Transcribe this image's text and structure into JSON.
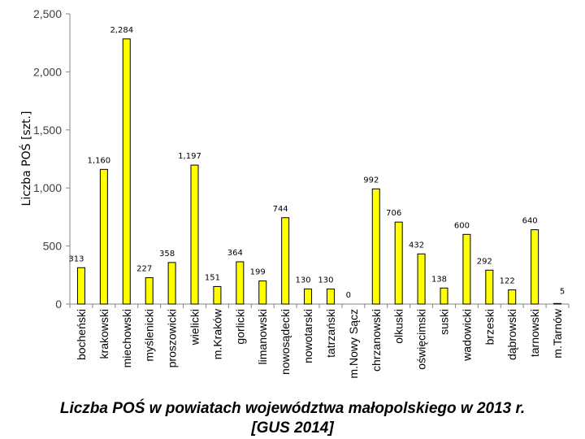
{
  "chart_data": {
    "type": "bar",
    "title_line1": "Liczba POŚ w powiatach województwa małopolskiego w 2013 r.",
    "title_line2": "[GUS 2014]",
    "ylabel": "Liczba POŚ [szt.]",
    "xlabel": "",
    "ylim": [
      0,
      2500
    ],
    "yticks": [
      0,
      500,
      1000,
      1500,
      2000,
      2500
    ],
    "ytick_labels": [
      "0",
      "500",
      "1,000",
      "1,500",
      "2,000",
      "2,500"
    ],
    "grid": false,
    "bar_color": "#FFFF00",
    "bar_edge_color": "#000000",
    "categories": [
      "bocheński",
      "krakowski",
      "miechowski",
      "myślenicki",
      "proszowicki",
      "wielicki",
      "m.Kraków",
      "gorlicki",
      "limanowski",
      "nowosądecki",
      "nowotarski",
      "tatrzański",
      "m.Nowy Sącz",
      "chrzanowski",
      "olkuski",
      "oświęcimski",
      "suski",
      "wadowicki",
      "brzeski",
      "dąbrowski",
      "tarnowski",
      "m.Tarnów"
    ],
    "values": [
      313,
      1160,
      2284,
      227,
      358,
      1197,
      151,
      364,
      199,
      744,
      130,
      130,
      0,
      992,
      706,
      432,
      138,
      600,
      292,
      122,
      640,
      5
    ],
    "value_labels": [
      "313",
      "1,160",
      "2,284",
      "227",
      "358",
      "1,197",
      "151",
      "364",
      "199",
      "744",
      "130",
      "130",
      "0",
      "992",
      "706",
      "432",
      "138",
      "600",
      "292",
      "122",
      "640",
      "5"
    ]
  }
}
